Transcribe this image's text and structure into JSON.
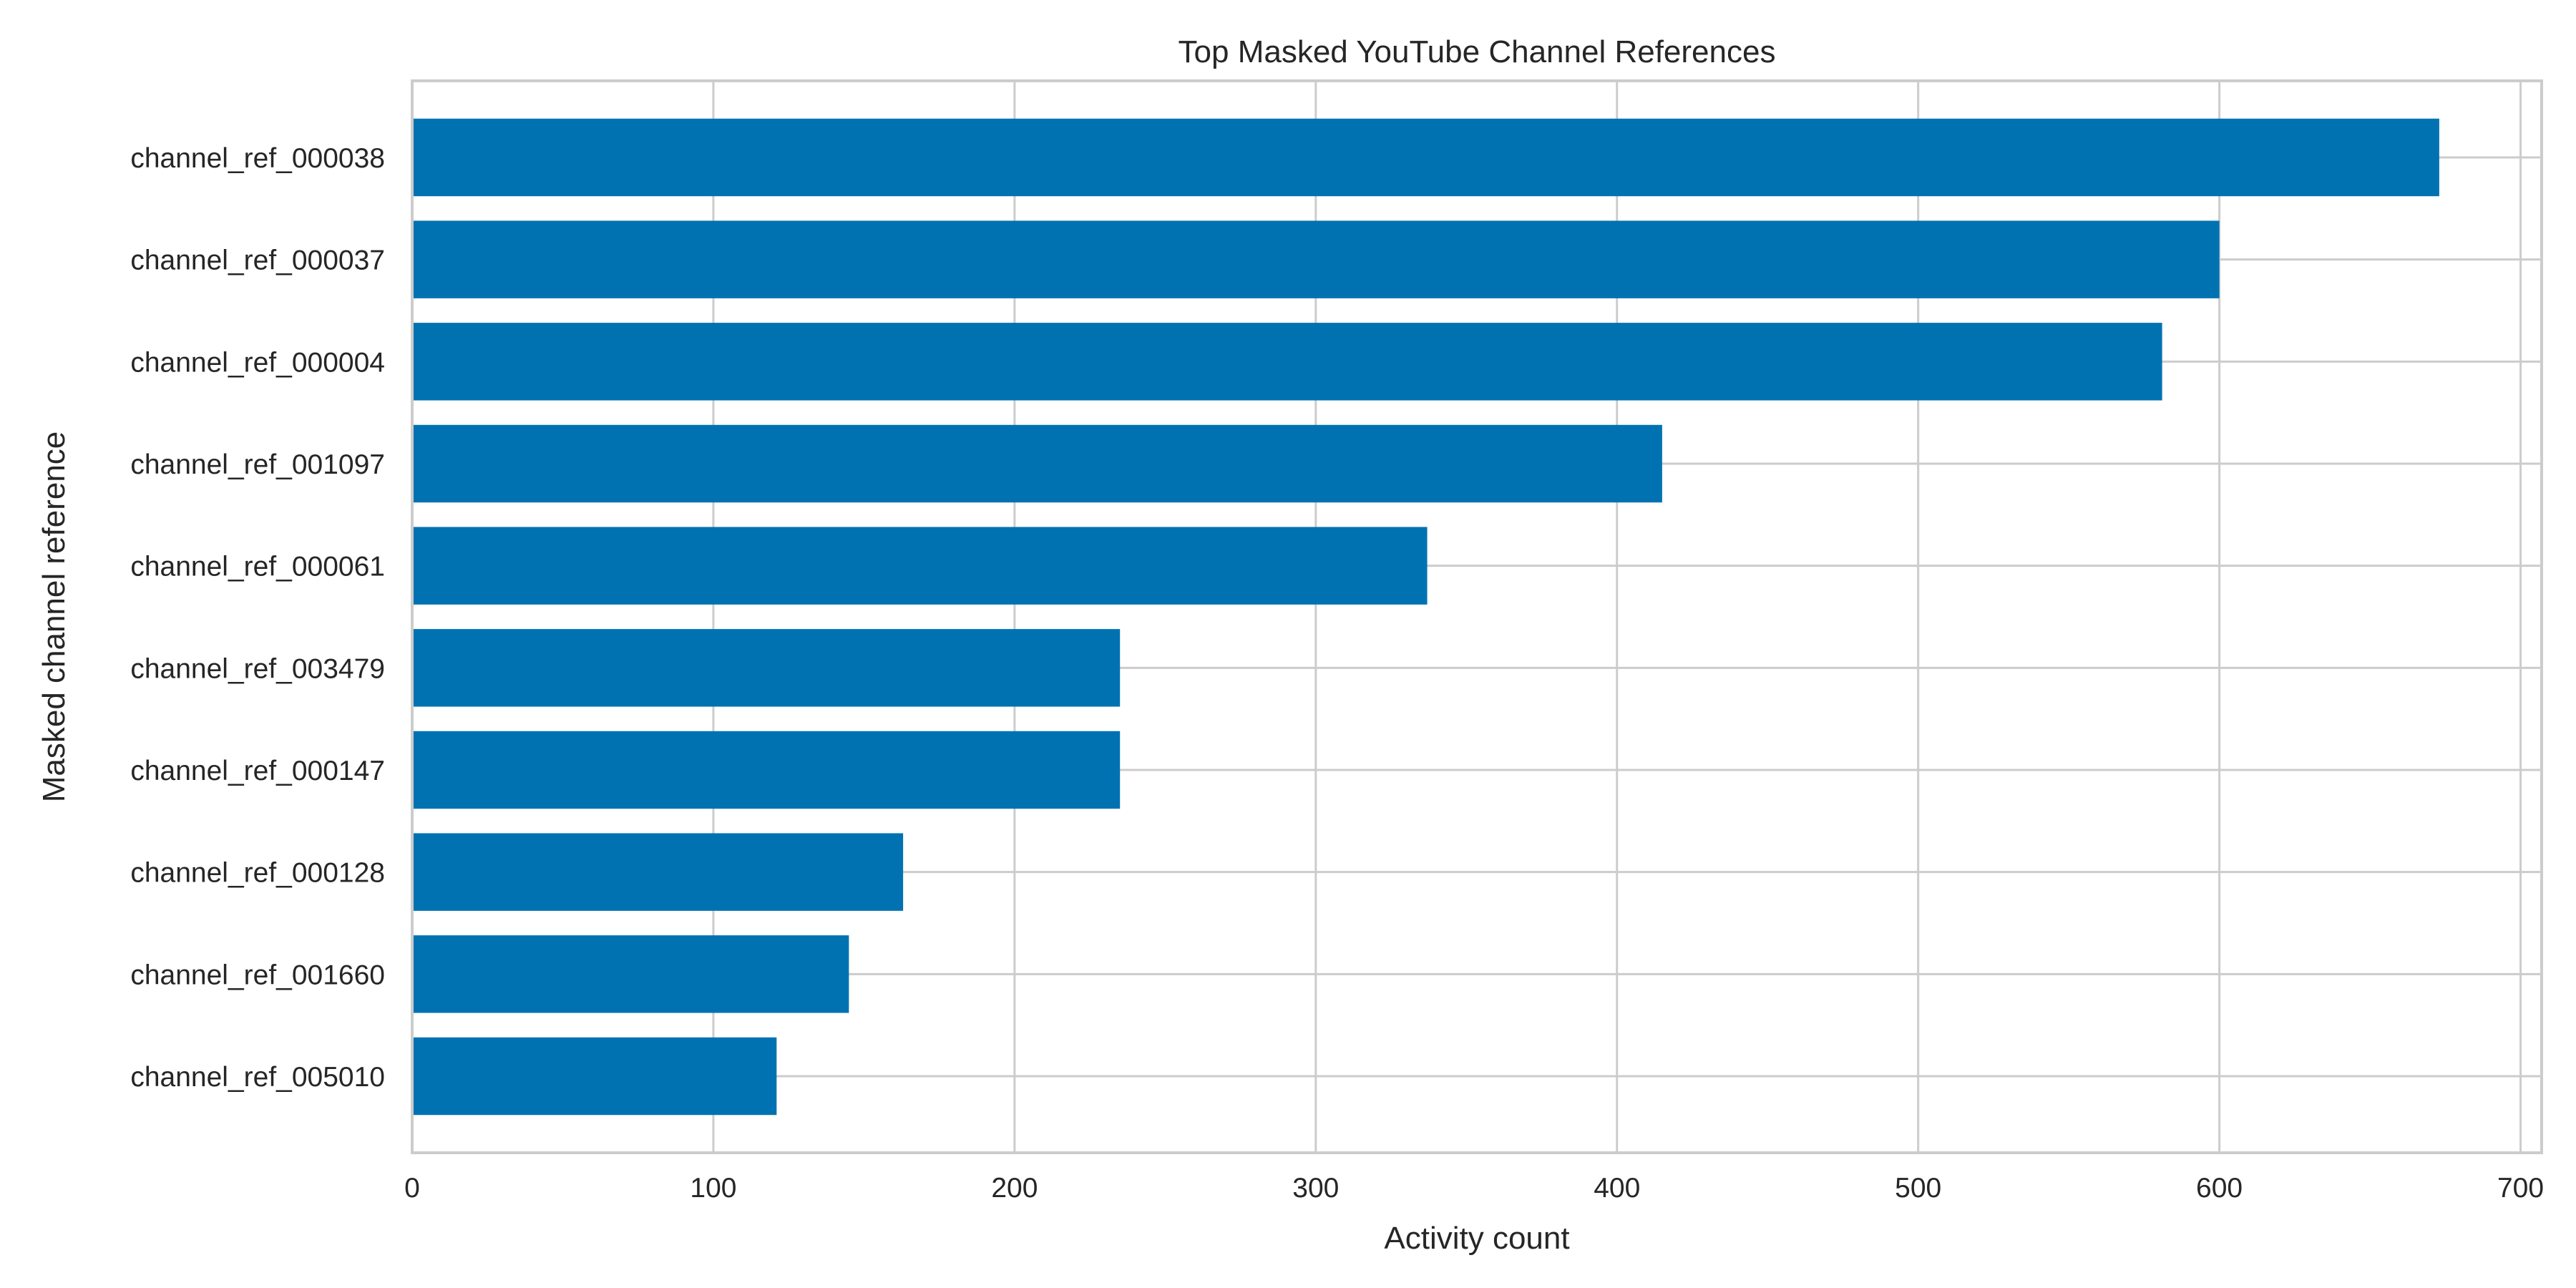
{
  "chart_data": {
    "type": "bar",
    "orientation": "horizontal",
    "title": "Top Masked YouTube Channel References",
    "xlabel": "Activity count",
    "ylabel": "Masked channel reference",
    "categories": [
      "channel_ref_000038",
      "channel_ref_000037",
      "channel_ref_000004",
      "channel_ref_001097",
      "channel_ref_000061",
      "channel_ref_003479",
      "channel_ref_000147",
      "channel_ref_000128",
      "channel_ref_001660",
      "channel_ref_005010"
    ],
    "values": [
      673,
      600,
      581,
      415,
      337,
      235,
      235,
      163,
      145,
      121
    ],
    "xlim": [
      0,
      707
    ],
    "xticks": [
      0,
      100,
      200,
      300,
      400,
      500,
      600,
      700
    ],
    "xtick_labels": [
      "0",
      "100",
      "200",
      "300",
      "400",
      "500",
      "600",
      "700"
    ],
    "grid": true,
    "bar_color": "#0072b2",
    "grid_color": "#cccccc"
  }
}
